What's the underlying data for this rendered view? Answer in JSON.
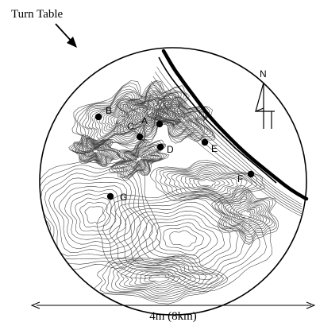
{
  "figure": {
    "callout": "Turn Table",
    "north": "N",
    "scale": "4m (8km)",
    "points": [
      {
        "id": "A",
        "label": "A"
      },
      {
        "id": "B",
        "label": "B"
      },
      {
        "id": "C",
        "label": "C"
      },
      {
        "id": "D",
        "label": "D"
      },
      {
        "id": "E",
        "label": "E"
      },
      {
        "id": "F",
        "label": "F"
      },
      {
        "id": "G",
        "label": "G"
      }
    ]
  },
  "colors": {
    "ink": "#000000",
    "contour": "#3a3a3a",
    "background": "#ffffff"
  }
}
